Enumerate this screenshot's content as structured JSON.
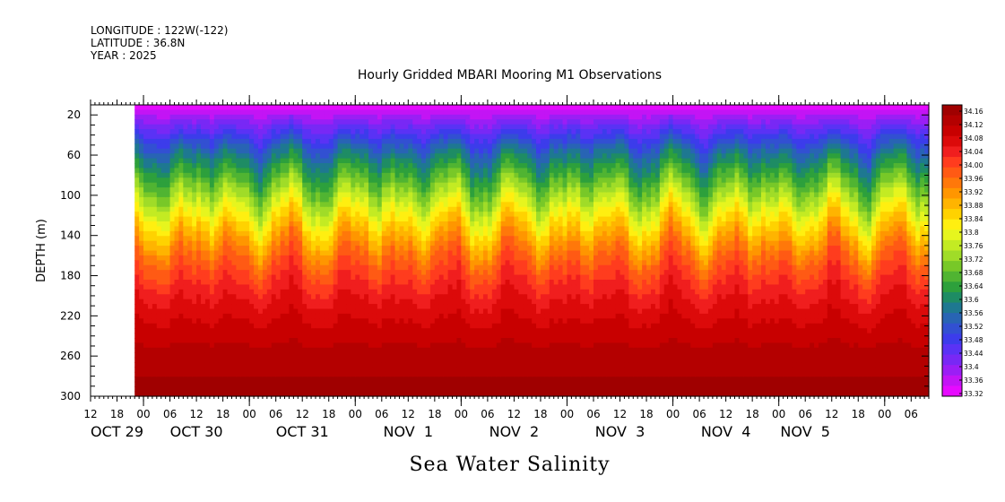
{
  "header": {
    "longitude": "LONGITUDE : 122W(-122)",
    "latitude": "LATITUDE : 36.8N",
    "year": "YEAR : 2025",
    "plot_title": "Hourly Gridded MBARI Mooring M1 Observations",
    "footer_title": "Sea Water Salinity"
  },
  "chart_data": {
    "type": "heatmap",
    "title": "Hourly Gridded MBARI Mooring M1 Observations",
    "variable": "Sea Water Salinity",
    "ylabel": "DEPTH (m)",
    "xlabel": "",
    "yaxis": {
      "range": [
        300,
        10
      ],
      "inverted": true,
      "ticks": [
        20,
        60,
        100,
        140,
        180,
        220,
        260,
        300
      ]
    },
    "xaxis": {
      "range_hours": [
        0,
        190
      ],
      "hour_ticks": [
        {
          "h": 0,
          "label": "12"
        },
        {
          "h": 6,
          "label": "18"
        },
        {
          "h": 12,
          "label": "00"
        },
        {
          "h": 18,
          "label": "06"
        },
        {
          "h": 24,
          "label": "12"
        },
        {
          "h": 30,
          "label": "18"
        },
        {
          "h": 36,
          "label": "00"
        },
        {
          "h": 42,
          "label": "06"
        },
        {
          "h": 48,
          "label": "12"
        },
        {
          "h": 54,
          "label": "18"
        },
        {
          "h": 60,
          "label": "00"
        },
        {
          "h": 66,
          "label": "06"
        },
        {
          "h": 72,
          "label": "12"
        },
        {
          "h": 78,
          "label": "18"
        },
        {
          "h": 84,
          "label": "00"
        },
        {
          "h": 90,
          "label": "06"
        },
        {
          "h": 96,
          "label": "12"
        },
        {
          "h": 102,
          "label": "18"
        },
        {
          "h": 108,
          "label": "00"
        },
        {
          "h": 114,
          "label": "06"
        },
        {
          "h": 120,
          "label": "12"
        },
        {
          "h": 126,
          "label": "18"
        },
        {
          "h": 132,
          "label": "00"
        },
        {
          "h": 138,
          "label": "06"
        },
        {
          "h": 144,
          "label": "12"
        },
        {
          "h": 150,
          "label": "18"
        },
        {
          "h": 156,
          "label": "00"
        },
        {
          "h": 162,
          "label": "06"
        },
        {
          "h": 168,
          "label": "12"
        },
        {
          "h": 174,
          "label": "18"
        },
        {
          "h": 180,
          "label": "00"
        },
        {
          "h": 186,
          "label": "06"
        }
      ],
      "date_labels": [
        {
          "h": 6,
          "label": "OCT 29"
        },
        {
          "h": 24,
          "label": "OCT 30"
        },
        {
          "h": 48,
          "label": "OCT 31"
        },
        {
          "h": 72,
          "label": "NOV  1"
        },
        {
          "h": 96,
          "label": "NOV  2"
        },
        {
          "h": 120,
          "label": "NOV  3"
        },
        {
          "h": 144,
          "label": "NOV  4"
        },
        {
          "h": 162,
          "label": "NOV  5"
        }
      ]
    },
    "data_start_hour": 10,
    "colorbar": {
      "labels": [
        "34.16",
        "34.12",
        "34.08",
        "34.04",
        "34.00",
        "33.96",
        "33.92",
        "33.88",
        "33.84",
        "33.8",
        "33.76",
        "33.72",
        "33.68",
        "33.64",
        "33.6",
        "33.56",
        "33.52",
        "33.48",
        "33.44",
        "33.4",
        "33.36",
        "33.32"
      ],
      "colors": [
        "#a00000",
        "#b40000",
        "#c80000",
        "#dc0a0a",
        "#f01e1e",
        "#ff3c1e",
        "#ff5a14",
        "#ff780a",
        "#ff9600",
        "#ffb400",
        "#ffd200",
        "#ffef10",
        "#e6f51e",
        "#c3eb23",
        "#a0dc28",
        "#78c828",
        "#50b432",
        "#2da03c",
        "#1e8c64",
        "#1e7891",
        "#2864b4",
        "#3250d2",
        "#3c3ceb",
        "#5a32f5",
        "#7828f5",
        "#9b1ef5",
        "#c314f5",
        "#e60aff"
      ],
      "min": 33.32,
      "max": 34.18
    },
    "salinity_profile": [
      {
        "depth": 10,
        "value": 33.33
      },
      {
        "depth": 20,
        "value": 33.38
      },
      {
        "depth": 40,
        "value": 33.48
      },
      {
        "depth": 60,
        "value": 33.58
      },
      {
        "depth": 80,
        "value": 33.66
      },
      {
        "depth": 100,
        "value": 33.74
      },
      {
        "depth": 120,
        "value": 33.82
      },
      {
        "depth": 140,
        "value": 33.89
      },
      {
        "depth": 160,
        "value": 33.96
      },
      {
        "depth": 180,
        "value": 34.01
      },
      {
        "depth": 200,
        "value": 34.05
      },
      {
        "depth": 220,
        "value": 34.08
      },
      {
        "depth": 240,
        "value": 34.11
      },
      {
        "depth": 260,
        "value": 34.13
      },
      {
        "depth": 280,
        "value": 34.15
      },
      {
        "depth": 300,
        "value": 34.17
      }
    ]
  }
}
